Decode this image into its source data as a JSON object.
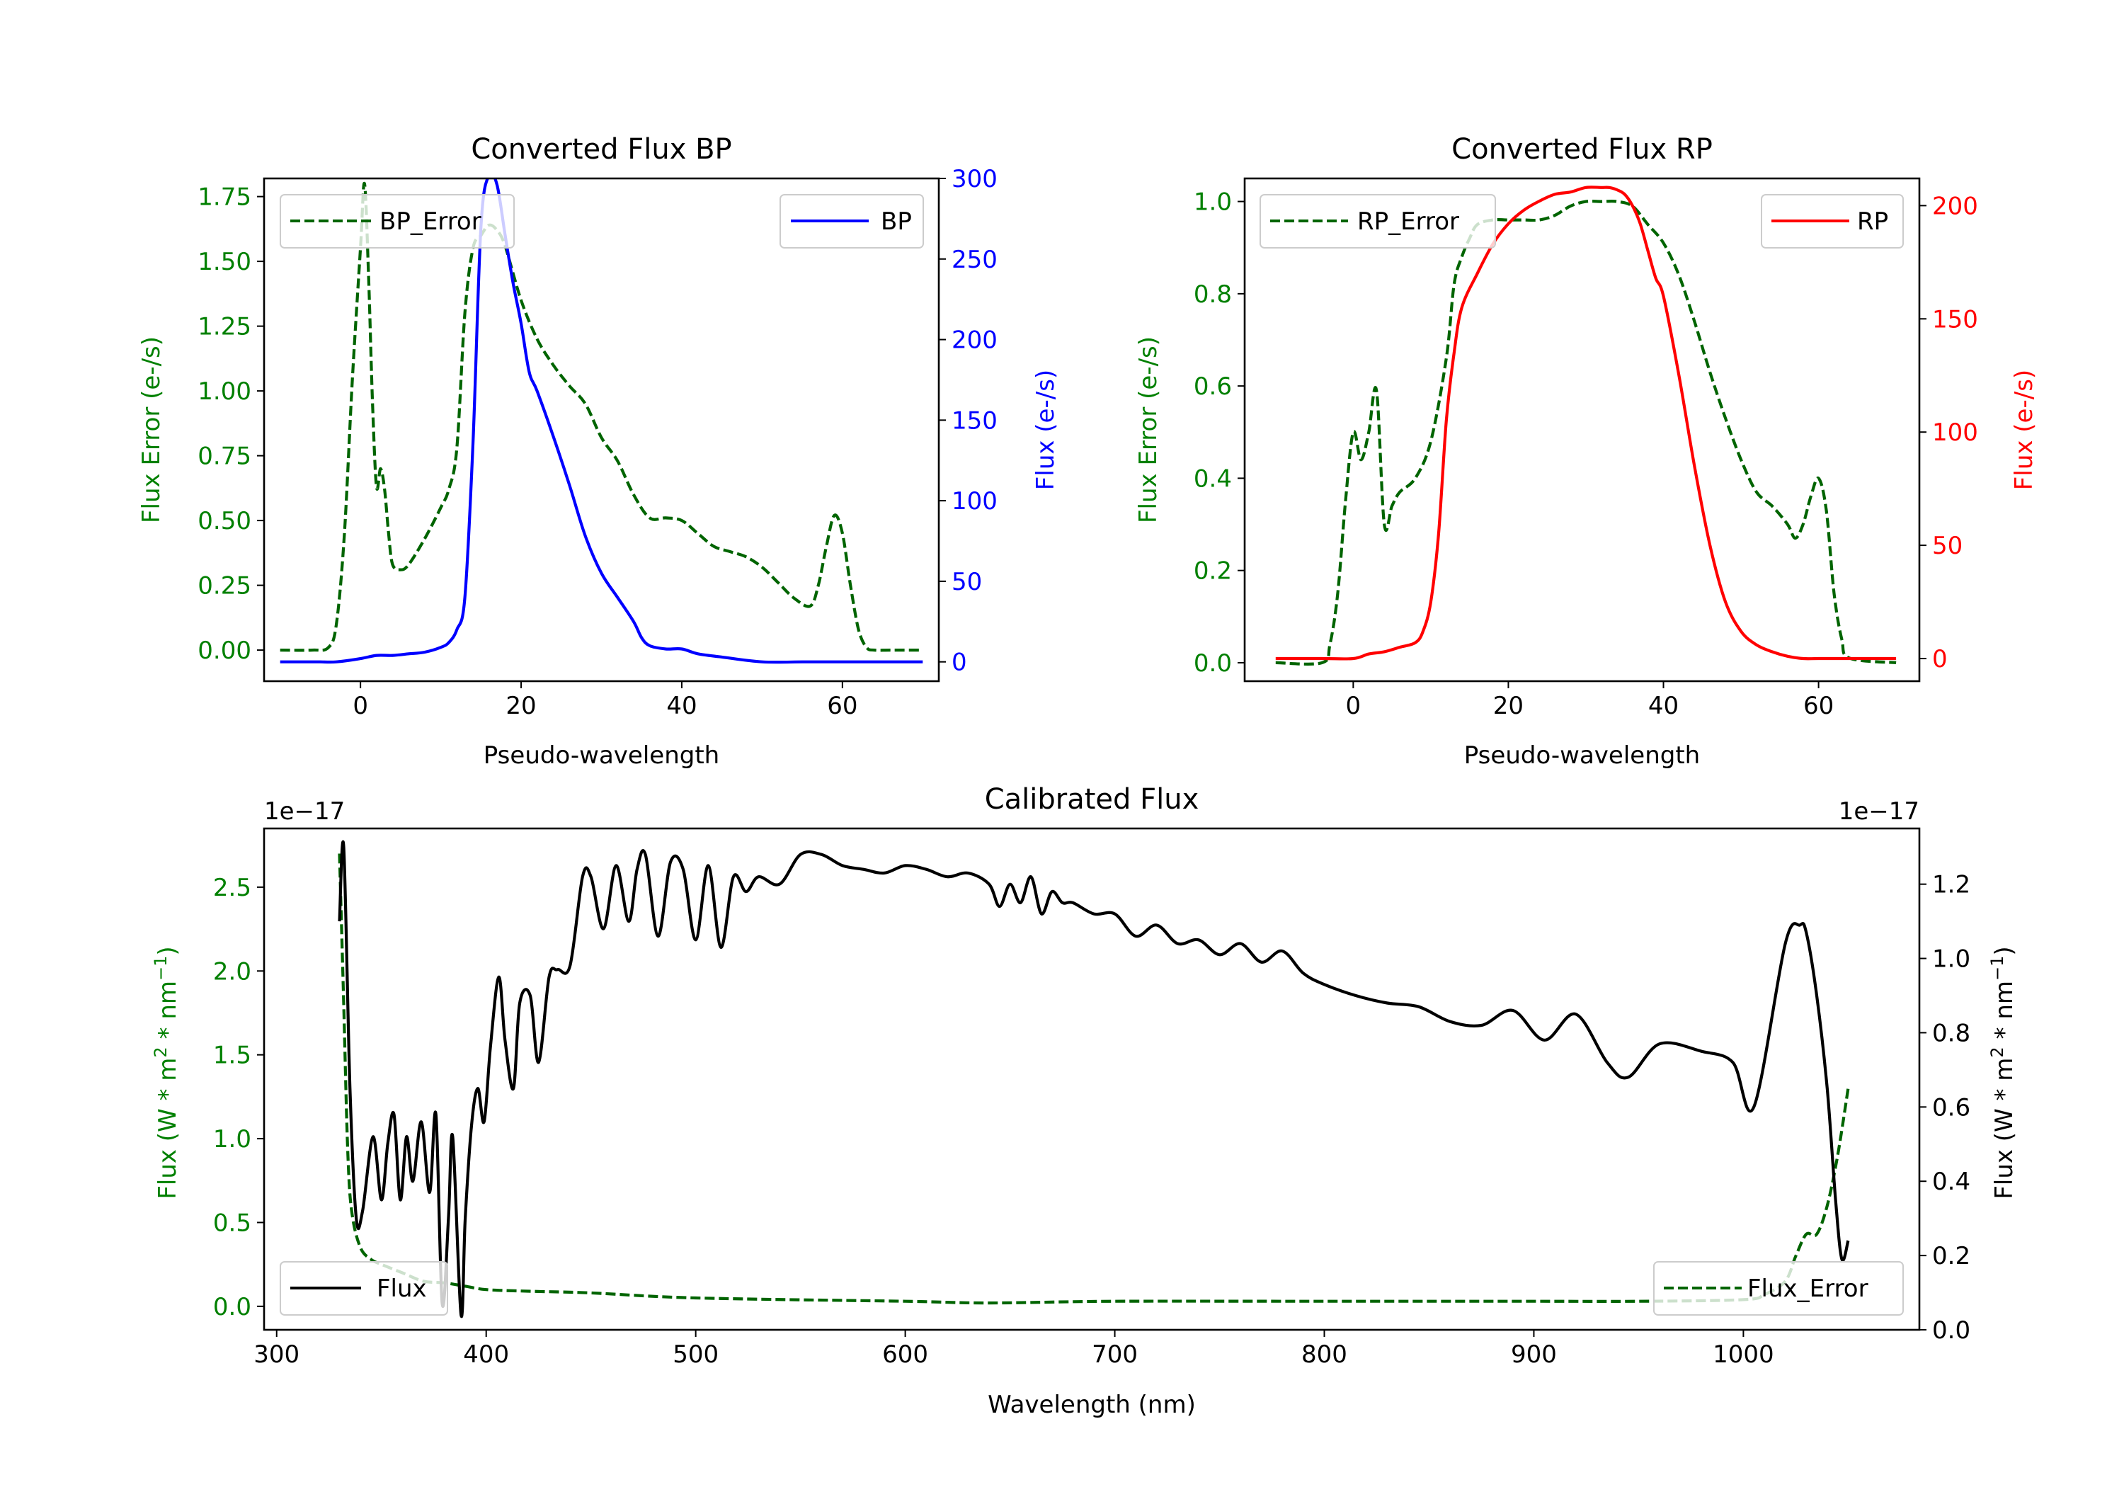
{
  "chart_data": [
    {
      "id": "bp",
      "type": "line",
      "title": "Converted Flux BP",
      "xlabel": "Pseudo-wavelength",
      "ylabel_left": "Flux Error (e-/s)",
      "ylabel_right": "Flux (e-/s)",
      "xlim": [
        -12,
        72
      ],
      "ylim_left": [
        -0.12,
        1.82
      ],
      "ylim_right": [
        -12,
        300
      ],
      "xticks": [
        0,
        20,
        40,
        60
      ],
      "yticks_left": [
        0.0,
        0.25,
        0.5,
        0.75,
        1.0,
        1.25,
        1.5,
        1.75
      ],
      "yticks_left_labels": [
        "0.00",
        "0.25",
        "0.50",
        "0.75",
        "1.00",
        "1.25",
        "1.50",
        "1.75"
      ],
      "yticks_right": [
        0,
        50,
        100,
        150,
        200,
        250,
        300
      ],
      "left_color": "#008000",
      "right_color": "#0000ff",
      "series": [
        {
          "name": "BP_Error",
          "axis": "left",
          "style": "dashed",
          "color": "#006400",
          "legend": "top-left",
          "x": [
            -10,
            -6,
            -4,
            -3,
            -2,
            -1,
            0,
            0.5,
            1,
            1.5,
            2,
            2.5,
            3,
            3.5,
            4,
            5,
            6,
            8,
            10,
            11,
            12,
            13,
            14,
            15,
            16,
            17,
            18,
            20,
            22,
            24,
            26,
            28,
            30,
            32,
            34,
            36,
            38,
            40,
            42,
            44,
            46,
            48,
            50,
            52,
            54,
            56,
            57,
            58,
            59,
            60,
            61,
            62,
            63,
            64,
            66,
            70
          ],
          "values": [
            0.0,
            0.0,
            0.01,
            0.1,
            0.45,
            1.05,
            1.55,
            1.8,
            1.45,
            0.95,
            0.63,
            0.7,
            0.62,
            0.45,
            0.33,
            0.31,
            0.33,
            0.43,
            0.55,
            0.62,
            0.78,
            1.3,
            1.55,
            1.6,
            1.64,
            1.62,
            1.56,
            1.35,
            1.2,
            1.1,
            1.02,
            0.95,
            0.82,
            0.73,
            0.6,
            0.51,
            0.51,
            0.5,
            0.45,
            0.4,
            0.38,
            0.36,
            0.32,
            0.26,
            0.2,
            0.17,
            0.25,
            0.4,
            0.52,
            0.45,
            0.25,
            0.08,
            0.01,
            0.0,
            0.0,
            0.0
          ]
        },
        {
          "name": "BP",
          "axis": "right",
          "style": "solid",
          "color": "#0000ff",
          "legend": "top-right",
          "x": [
            -10,
            -6,
            -5,
            -3,
            0,
            2,
            4,
            6,
            8,
            10,
            11,
            12,
            13,
            14,
            15,
            16,
            17,
            18,
            19,
            20,
            21,
            22,
            24,
            26,
            28,
            30,
            32,
            34,
            35,
            36,
            38,
            40,
            42,
            45,
            50,
            55,
            58,
            60,
            62,
            65,
            70
          ],
          "values": [
            0,
            0,
            0,
            0,
            2,
            4,
            4,
            5,
            6,
            9,
            12,
            20,
            40,
            135,
            270,
            302,
            296,
            265,
            235,
            210,
            180,
            168,
            140,
            110,
            78,
            55,
            40,
            25,
            15,
            10,
            8,
            8,
            5,
            3,
            0,
            0,
            0,
            0,
            0,
            0,
            0
          ]
        }
      ]
    },
    {
      "id": "rp",
      "type": "line",
      "title": "Converted Flux RP",
      "xlabel": "Pseudo-wavelength",
      "ylabel_left": "Flux Error (e-/s)",
      "ylabel_right": "Flux (e-/s)",
      "xlim": [
        -14,
        73
      ],
      "ylim_left": [
        -0.04,
        1.05
      ],
      "ylim_right": [
        -10,
        212
      ],
      "xticks": [
        0,
        20,
        40,
        60
      ],
      "yticks_left": [
        0.0,
        0.2,
        0.4,
        0.6,
        0.8,
        1.0
      ],
      "yticks_left_labels": [
        "0.0",
        "0.2",
        "0.4",
        "0.6",
        "0.8",
        "1.0"
      ],
      "yticks_right": [
        0,
        50,
        100,
        150,
        200
      ],
      "left_color": "#008000",
      "right_color": "#ff0000",
      "series": [
        {
          "name": "RP_Error",
          "axis": "left",
          "style": "dashed",
          "color": "#006400",
          "legend": "top-left",
          "x": [
            -10,
            -4,
            -3,
            -2,
            -1,
            0,
            1,
            2,
            3,
            4,
            5,
            6,
            8,
            10,
            12,
            13,
            14,
            15,
            16,
            18,
            20,
            22,
            24,
            26,
            28,
            30,
            32,
            34,
            36,
            38,
            40,
            42,
            44,
            46,
            48,
            50,
            52,
            54,
            56,
            57,
            58,
            59,
            60,
            61,
            62,
            63,
            64,
            70
          ],
          "values": [
            0.0,
            0.0,
            0.04,
            0.15,
            0.35,
            0.5,
            0.44,
            0.5,
            0.59,
            0.3,
            0.34,
            0.37,
            0.4,
            0.48,
            0.66,
            0.82,
            0.88,
            0.92,
            0.95,
            0.96,
            0.96,
            0.96,
            0.96,
            0.97,
            0.99,
            1.0,
            1.0,
            1.0,
            0.99,
            0.95,
            0.91,
            0.84,
            0.74,
            0.63,
            0.53,
            0.44,
            0.37,
            0.34,
            0.3,
            0.27,
            0.3,
            0.36,
            0.4,
            0.33,
            0.15,
            0.05,
            0.01,
            0.0
          ]
        },
        {
          "name": "RP",
          "axis": "right",
          "style": "solid",
          "color": "#ff0000",
          "legend": "top-right",
          "x": [
            -10,
            -4,
            0,
            2,
            4,
            6,
            8,
            9,
            10,
            11,
            12,
            13,
            14,
            16,
            18,
            20,
            22,
            24,
            26,
            28,
            30,
            32,
            33,
            34,
            35,
            36,
            37,
            38,
            39,
            40,
            42,
            44,
            46,
            48,
            50,
            52,
            54,
            56,
            58,
            60,
            64,
            70
          ],
          "values": [
            0,
            0,
            0,
            2,
            3,
            5,
            7,
            12,
            25,
            55,
            105,
            135,
            155,
            170,
            183,
            192,
            198,
            202,
            205,
            206,
            208,
            208,
            208,
            207,
            205,
            200,
            192,
            180,
            168,
            160,
            125,
            85,
            50,
            25,
            12,
            6,
            3,
            1,
            0,
            0,
            0,
            0
          ]
        }
      ]
    },
    {
      "id": "cal",
      "type": "line",
      "title": "Calibrated Flux",
      "xlabel": "Wavelength (nm)",
      "ylabel_left": "Flux (W * m$^2$ * nm$^{-1}$)",
      "ylabel_left_main": "Flux (W * m",
      "ylabel_left_sup1": "2",
      "ylabel_left_mid": " * nm",
      "ylabel_left_sup2": "−1",
      "ylabel_left_end": ")",
      "ylabel_right_main": "Flux (W * m",
      "ylabel_right_sup1": "2",
      "ylabel_right_mid": " * nm",
      "ylabel_right_sup2": "−1",
      "ylabel_right_end": ")",
      "offset_left": "1e−17",
      "offset_right": "1e−17",
      "xlim": [
        294,
        1084
      ],
      "ylim_left": [
        -0.14,
        2.85
      ],
      "ylim_right": [
        0.0,
        1.35
      ],
      "xticks": [
        300,
        400,
        500,
        600,
        700,
        800,
        900,
        1000
      ],
      "yticks_left": [
        0.0,
        0.5,
        1.0,
        1.5,
        2.0,
        2.5
      ],
      "yticks_left_labels": [
        "0.0",
        "0.5",
        "1.0",
        "1.5",
        "2.0",
        "2.5"
      ],
      "yticks_right": [
        0.0,
        0.2,
        0.4,
        0.6,
        0.8,
        1.0,
        1.2
      ],
      "yticks_right_labels": [
        "0.0",
        "0.2",
        "0.4",
        "0.6",
        "0.8",
        "1.0",
        "1.2"
      ],
      "left_color": "#008000",
      "right_color": "#000000",
      "series": [
        {
          "name": "Flux_Error",
          "axis": "left",
          "style": "dashed",
          "color": "#006400",
          "legend": "bottom-right",
          "x": [
            330,
            332,
            334,
            336,
            340,
            345,
            350,
            360,
            370,
            380,
            390,
            400,
            420,
            450,
            500,
            600,
            640,
            700,
            800,
            900,
            950,
            1000,
            1010,
            1020,
            1025,
            1030,
            1035,
            1040,
            1045,
            1050
          ],
          "values": [
            2.7,
            1.8,
            0.9,
            0.55,
            0.35,
            0.28,
            0.25,
            0.2,
            0.15,
            0.14,
            0.12,
            0.1,
            0.09,
            0.08,
            0.05,
            0.03,
            0.02,
            0.03,
            0.03,
            0.03,
            0.03,
            0.04,
            0.07,
            0.15,
            0.3,
            0.43,
            0.43,
            0.6,
            0.9,
            1.3
          ]
        },
        {
          "name": "Flux",
          "axis": "right",
          "style": "solid",
          "color": "#000000",
          "legend": "bottom-left",
          "x": [
            330,
            332,
            335,
            338,
            341,
            346,
            350,
            353,
            356,
            359,
            362,
            365,
            369,
            373,
            376,
            379,
            382,
            384,
            388,
            390,
            393,
            396,
            399,
            402,
            406,
            409,
            413,
            416,
            421,
            425,
            430,
            434,
            440,
            446,
            450,
            456,
            462,
            468,
            472,
            476,
            482,
            488,
            494,
            500,
            506,
            512,
            518,
            524,
            530,
            540,
            550,
            560,
            570,
            580,
            590,
            600,
            610,
            620,
            630,
            640,
            645,
            650,
            655,
            660,
            665,
            670,
            675,
            680,
            690,
            700,
            710,
            720,
            730,
            740,
            750,
            760,
            770,
            780,
            790,
            800,
            815,
            830,
            845,
            860,
            875,
            890,
            905,
            920,
            935,
            945,
            960,
            980,
            995,
            1005,
            1020,
            1027,
            1030,
            1035,
            1040,
            1044,
            1047,
            1050
          ],
          "values": [
            1.1,
            1.3,
            0.65,
            0.3,
            0.32,
            0.52,
            0.35,
            0.5,
            0.58,
            0.35,
            0.52,
            0.4,
            0.56,
            0.37,
            0.58,
            0.07,
            0.3,
            0.52,
            0.04,
            0.3,
            0.55,
            0.65,
            0.56,
            0.76,
            0.95,
            0.78,
            0.65,
            0.88,
            0.9,
            0.72,
            0.95,
            0.97,
            0.98,
            1.22,
            1.22,
            1.08,
            1.25,
            1.1,
            1.24,
            1.28,
            1.06,
            1.26,
            1.24,
            1.05,
            1.25,
            1.03,
            1.22,
            1.18,
            1.22,
            1.2,
            1.28,
            1.28,
            1.25,
            1.24,
            1.23,
            1.25,
            1.24,
            1.22,
            1.23,
            1.2,
            1.14,
            1.2,
            1.15,
            1.22,
            1.12,
            1.18,
            1.15,
            1.15,
            1.12,
            1.12,
            1.06,
            1.09,
            1.04,
            1.05,
            1.01,
            1.04,
            0.99,
            1.02,
            0.96,
            0.93,
            0.9,
            0.88,
            0.87,
            0.83,
            0.82,
            0.86,
            0.78,
            0.85,
            0.72,
            0.68,
            0.77,
            0.75,
            0.72,
            0.6,
            1.04,
            1.09,
            1.07,
            0.9,
            0.65,
            0.35,
            0.19,
            0.24
          ]
        }
      ]
    }
  ]
}
